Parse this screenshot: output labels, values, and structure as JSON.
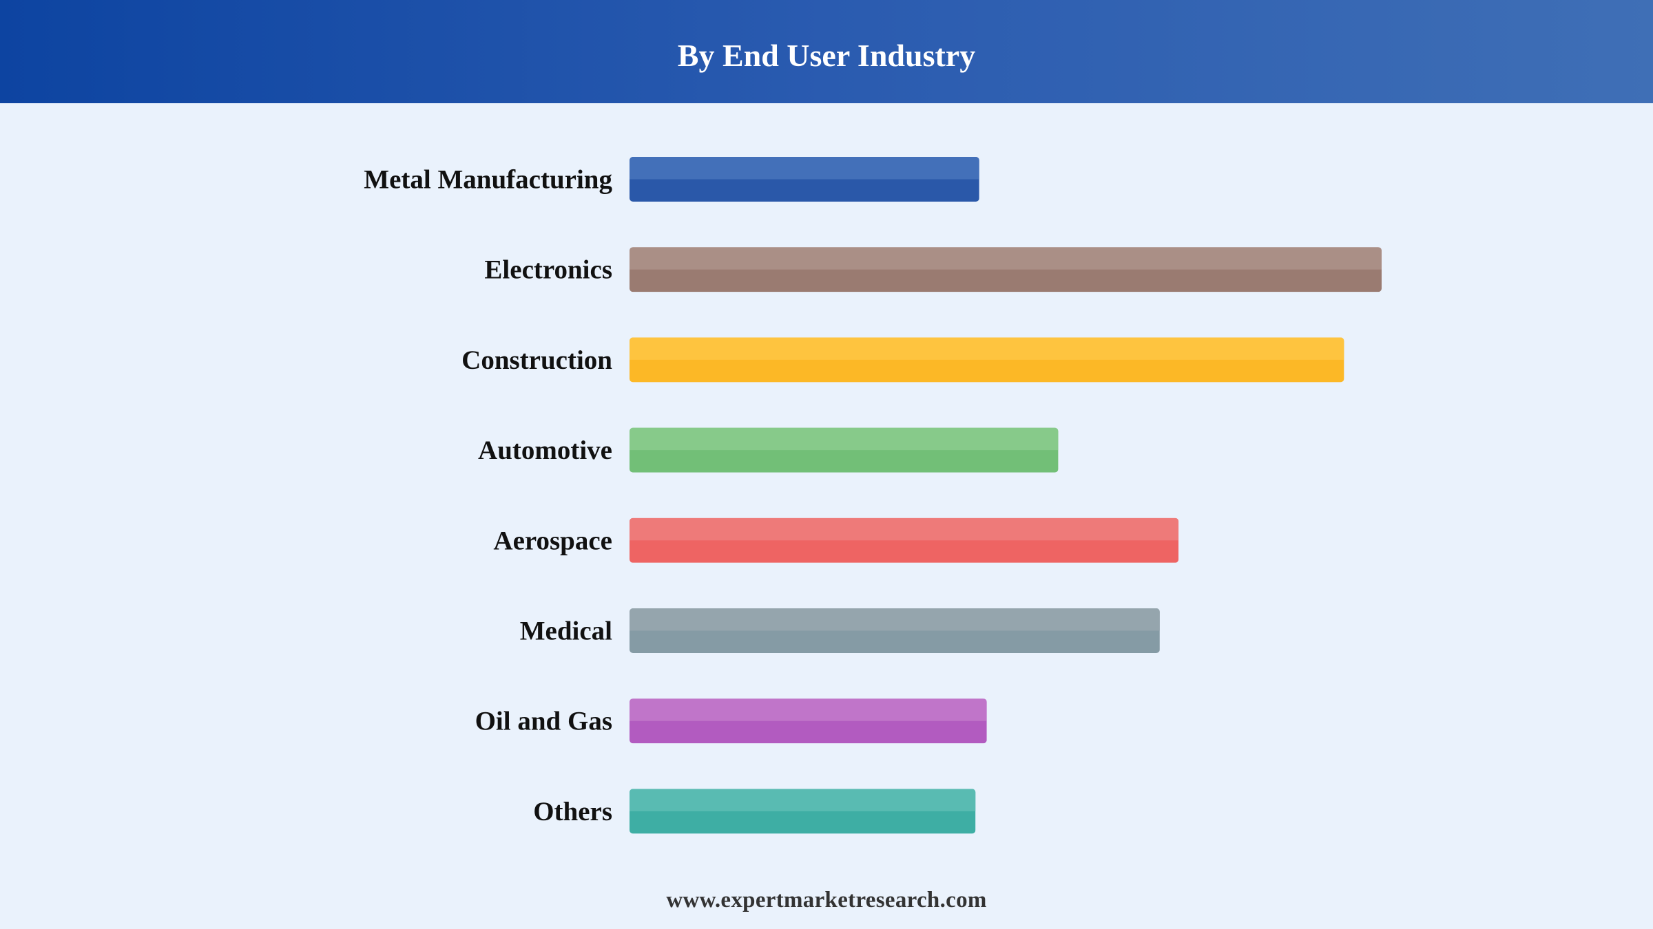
{
  "header": {
    "title": "By End User Industry"
  },
  "footer": {
    "source": "www.expertmarketresearch.com"
  },
  "colors": {
    "header_start": "#0d44a1",
    "header_end": "#3f6fb6",
    "background": "#eaf2fc"
  },
  "chart_data": {
    "type": "bar",
    "orientation": "horizontal",
    "title": "By End User Industry",
    "xlabel": "",
    "ylabel": "",
    "grid": false,
    "legend": "none",
    "categories": [
      "Metal Manufacturing",
      "Electronics",
      "Construction",
      "Automotive",
      "Aerospace",
      "Medical",
      "Oil and Gas",
      "Others"
    ],
    "values": [
      46.5,
      100,
      95,
      57,
      73,
      70.5,
      47.5,
      46
    ],
    "xlim": [
      0,
      100
    ],
    "bar_colors": [
      {
        "top": "#4370b9",
        "bottom": "#2a58a9"
      },
      {
        "top": "#aa8f86",
        "bottom": "#9a7b71"
      },
      {
        "top": "#fec43f",
        "bottom": "#fcb826"
      },
      {
        "top": "#87ca8a",
        "bottom": "#72bf77"
      },
      {
        "top": "#ee7a79",
        "bottom": "#ee6463"
      },
      {
        "top": "#95a5ad",
        "bottom": "#859ba5"
      },
      {
        "top": "#c075c9",
        "bottom": "#b25bc0"
      },
      {
        "top": "#59bbb2",
        "bottom": "#3eaea4"
      }
    ]
  }
}
